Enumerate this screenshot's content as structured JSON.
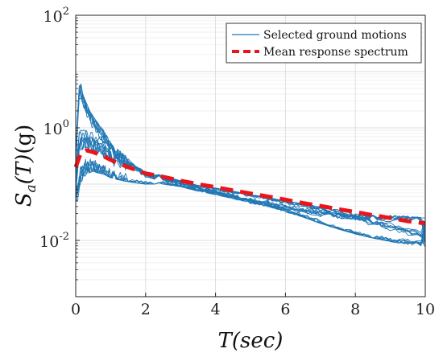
{
  "chart_data": {
    "type": "line",
    "title": "",
    "xlabel": "T(sec)",
    "ylabel": "Sa(T)(g)",
    "ylabel_parts": {
      "main": "S",
      "sub": "a",
      "arg": "(T)",
      "unit": "(g)"
    },
    "xlabel_parts": {
      "main": "T",
      "arg": "(sec)"
    },
    "x_scale": "linear",
    "y_scale": "log",
    "xlim": [
      0,
      10
    ],
    "ylim": [
      0.001,
      100
    ],
    "grid": true,
    "minor_grid": true,
    "legend_placement": "top-right",
    "x_ticks": [
      {
        "value": 0,
        "label": "0"
      },
      {
        "value": 2,
        "label": "2"
      },
      {
        "value": 4,
        "label": "4"
      },
      {
        "value": 6,
        "label": "6"
      },
      {
        "value": 8,
        "label": "8"
      },
      {
        "value": 10,
        "label": "10"
      }
    ],
    "y_ticks": [
      {
        "value": 100,
        "base": "10",
        "exp": "2"
      },
      {
        "value": 1,
        "base": "10",
        "exp": "0"
      },
      {
        "value": 0.01,
        "base": "10",
        "exp": "-2"
      }
    ],
    "colors": {
      "ground": "#1f77b4",
      "mean": "#e8151b",
      "grid": "#e3e3e3",
      "axis": "#222222"
    },
    "series": [
      {
        "name": "Selected ground motions",
        "style": "thin-solid",
        "member_count": 21,
        "x": [
          0,
          0.05,
          0.1,
          0.15,
          0.2,
          0.3,
          0.4,
          0.5,
          0.6,
          0.8,
          1.0,
          1.2,
          1.5,
          2.0,
          2.5,
          3.0,
          3.5,
          4.0,
          4.5,
          5.0,
          5.5,
          6.0,
          6.5,
          7.0,
          7.5,
          8.0,
          8.5,
          9.0,
          9.5,
          10.0
        ],
        "y_envelope_high": [
          0.25,
          1.5,
          5.5,
          6.0,
          4.0,
          2.8,
          2.0,
          1.6,
          1.3,
          0.9,
          0.55,
          0.42,
          0.3,
          0.17,
          0.14,
          0.115,
          0.095,
          0.085,
          0.075,
          0.065,
          0.058,
          0.05,
          0.045,
          0.04,
          0.036,
          0.033,
          0.03,
          0.028,
          0.027,
          0.025
        ],
        "y_envelope_low": [
          0.05,
          0.05,
          0.07,
          0.09,
          0.12,
          0.15,
          0.16,
          0.17,
          0.16,
          0.15,
          0.13,
          0.12,
          0.11,
          0.1,
          0.1,
          0.09,
          0.075,
          0.065,
          0.055,
          0.045,
          0.04,
          0.032,
          0.026,
          0.02,
          0.016,
          0.013,
          0.011,
          0.0095,
          0.0085,
          0.0075
        ]
      },
      {
        "name": "Mean response spectrum",
        "style": "thick-dashed",
        "x": [
          0,
          0.15,
          0.3,
          0.5,
          0.8,
          1.0,
          1.5,
          2.0,
          2.5,
          3.0,
          3.5,
          4.0,
          4.5,
          5.0,
          5.5,
          6.0,
          6.5,
          7.0,
          7.5,
          8.0,
          8.5,
          9.0,
          9.5,
          10.0
        ],
        "y": [
          0.2,
          0.36,
          0.4,
          0.37,
          0.31,
          0.27,
          0.2,
          0.155,
          0.135,
          0.115,
          0.1,
          0.088,
          0.077,
          0.068,
          0.06,
          0.053,
          0.046,
          0.041,
          0.036,
          0.032,
          0.028,
          0.025,
          0.022,
          0.02
        ]
      }
    ]
  }
}
